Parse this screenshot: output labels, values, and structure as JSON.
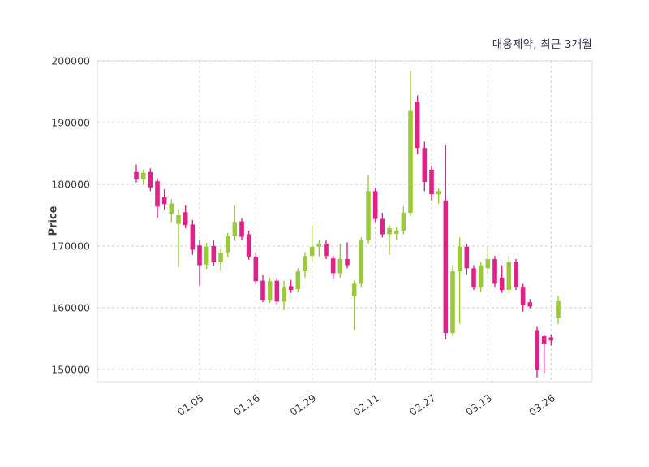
{
  "chart_data": {
    "type": "candlestick",
    "title": "대웅제약, 최근 3개월",
    "ylabel": "Price",
    "grid": "dashed",
    "legend": "none",
    "ylim": [
      148000,
      200000
    ],
    "y_ticks": [
      150000,
      160000,
      170000,
      180000,
      190000,
      200000
    ],
    "y_tick_labels": [
      "150000",
      "160000",
      "170000",
      "180000",
      "190000",
      "200000"
    ],
    "x_tick_labels": [
      "01.05",
      "01.16",
      "01.29",
      "02.11",
      "02.27",
      "03.13",
      "03.26"
    ],
    "x_tick_indices": [
      9,
      17,
      25,
      34,
      42,
      50,
      59
    ],
    "up_color": "#9aca3b",
    "down_color": "#e0218a",
    "grid_color": "#cccccc",
    "tick_color": "#3d3d3d",
    "candles_format": "open-high-low-close",
    "candles": [
      [
        182000,
        183200,
        180300,
        180800
      ],
      [
        180800,
        182400,
        179900,
        181900
      ],
      [
        182000,
        182600,
        178900,
        179500
      ],
      [
        180500,
        181000,
        174600,
        176400
      ],
      [
        177900,
        179200,
        175900,
        176800
      ],
      [
        175200,
        177600,
        173900,
        176900
      ],
      [
        173600,
        176000,
        166600,
        175000
      ],
      [
        175500,
        176600,
        172900,
        173400
      ],
      [
        173500,
        174200,
        168600,
        169400
      ],
      [
        170100,
        170900,
        163600,
        166900
      ],
      [
        167000,
        170500,
        166300,
        169900
      ],
      [
        170000,
        170900,
        166800,
        167400
      ],
      [
        167400,
        169500,
        166000,
        168900
      ],
      [
        169000,
        172100,
        168200,
        171600
      ],
      [
        171600,
        176600,
        170800,
        173900
      ],
      [
        174000,
        174500,
        170900,
        171500
      ],
      [
        171900,
        172500,
        167800,
        168300
      ],
      [
        168300,
        168900,
        163800,
        164300
      ],
      [
        164400,
        165300,
        160900,
        161300
      ],
      [
        161300,
        164900,
        160800,
        164300
      ],
      [
        164400,
        164900,
        160400,
        161000
      ],
      [
        161000,
        164400,
        159600,
        163400
      ],
      [
        163500,
        164500,
        162400,
        162900
      ],
      [
        163000,
        166400,
        162500,
        165900
      ],
      [
        165900,
        169000,
        164900,
        168400
      ],
      [
        168400,
        173400,
        167600,
        169900
      ],
      [
        169900,
        170900,
        168300,
        170400
      ],
      [
        170400,
        170900,
        167900,
        168400
      ],
      [
        168000,
        168500,
        164600,
        165600
      ],
      [
        165600,
        170400,
        164900,
        167900
      ],
      [
        167900,
        170600,
        166400,
        166900
      ],
      [
        161900,
        164400,
        156400,
        163900
      ],
      [
        163900,
        171400,
        163400,
        170900
      ],
      [
        170900,
        181400,
        170400,
        178900
      ],
      [
        178900,
        179400,
        173900,
        174400
      ],
      [
        174400,
        175400,
        171400,
        171900
      ],
      [
        171900,
        173400,
        168600,
        172900
      ],
      [
        172000,
        173000,
        171000,
        172500
      ],
      [
        172500,
        176400,
        171900,
        175400
      ],
      [
        175400,
        198400,
        174900,
        191900
      ],
      [
        193400,
        194400,
        184900,
        185900
      ],
      [
        185900,
        186900,
        178900,
        180400
      ],
      [
        182400,
        182900,
        177400,
        178400
      ],
      [
        178400,
        179400,
        176900,
        178900
      ],
      [
        177400,
        186400,
        154900,
        155900
      ],
      [
        155900,
        166900,
        155400,
        165900
      ],
      [
        165900,
        171400,
        157400,
        169900
      ],
      [
        169900,
        170400,
        165400,
        166400
      ],
      [
        166400,
        166900,
        162900,
        163400
      ],
      [
        163400,
        167400,
        162600,
        166900
      ],
      [
        166400,
        169900,
        165400,
        167900
      ],
      [
        167900,
        168400,
        163400,
        163900
      ],
      [
        164900,
        166900,
        162400,
        162900
      ],
      [
        162900,
        168400,
        162400,
        167400
      ],
      [
        167400,
        167900,
        162900,
        163400
      ],
      [
        163400,
        163900,
        159400,
        160400
      ],
      [
        160900,
        161400,
        159900,
        160200
      ],
      [
        156400,
        156900,
        148700,
        149900
      ],
      [
        155400,
        155700,
        149400,
        154200
      ],
      [
        155200,
        155700,
        153900,
        154700
      ],
      [
        158400,
        161900,
        157400,
        161200
      ]
    ]
  }
}
